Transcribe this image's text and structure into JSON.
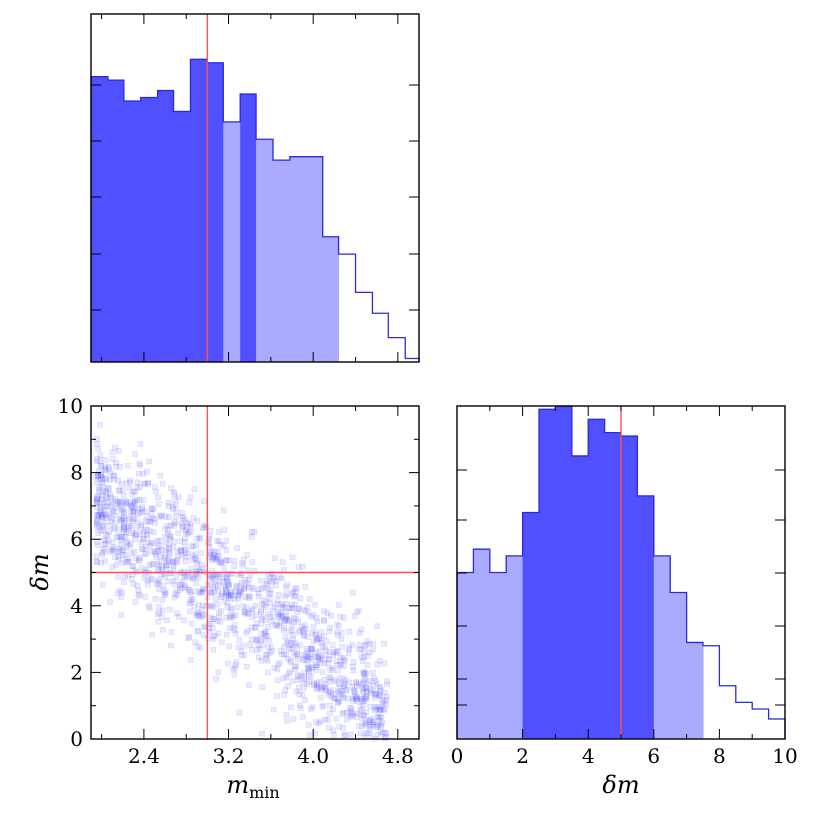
{
  "chart_data": [
    {
      "panel": "top-left",
      "type": "histogram",
      "xlim": [
        1.9,
        5.0
      ],
      "ylim": [
        0,
        1.0
      ],
      "bins": [
        [
          1.9,
          2.06,
          0.82
        ],
        [
          2.06,
          2.21,
          0.81
        ],
        [
          2.21,
          2.37,
          0.75
        ],
        [
          2.37,
          2.53,
          0.76
        ],
        [
          2.53,
          2.68,
          0.78
        ],
        [
          2.68,
          2.84,
          0.72
        ],
        [
          2.84,
          3.0,
          0.87
        ],
        [
          3.0,
          3.15,
          0.86
        ],
        [
          3.15,
          3.31,
          0.69
        ],
        [
          3.31,
          3.46,
          0.77
        ],
        [
          3.46,
          3.62,
          0.64
        ],
        [
          3.62,
          3.78,
          0.58
        ],
        [
          3.78,
          3.93,
          0.59
        ],
        [
          3.93,
          4.09,
          0.59
        ],
        [
          4.09,
          4.24,
          0.36
        ],
        [
          4.24,
          4.4,
          0.31
        ],
        [
          4.4,
          4.56,
          0.2
        ],
        [
          4.56,
          4.71,
          0.14
        ],
        [
          4.71,
          4.87,
          0.07
        ],
        [
          4.87,
          5.0,
          0.01
        ]
      ],
      "dark_bins": [
        0,
        1,
        2,
        3,
        4,
        5,
        6,
        7,
        9
      ],
      "light_bins": [
        8,
        10,
        11,
        12,
        13,
        14
      ],
      "truth": 3.0,
      "colors": {
        "dark": "#5050ff",
        "light": "#aaaaff",
        "edge": "#2b2bd6",
        "truth": "#ff5050"
      }
    },
    {
      "panel": "bottom-left",
      "type": "scatter",
      "xlabel": "m",
      "xlabel_sub": "min",
      "ylabel": "δm",
      "xlim": [
        1.9,
        5.0
      ],
      "ylim": [
        0,
        10
      ],
      "xticks": [
        2.4,
        3.2,
        4.0,
        4.8
      ],
      "xtick_labels": [
        "2.4",
        "3.2",
        "4.0",
        "4.8"
      ],
      "yticks": [
        0,
        2,
        4,
        6,
        8,
        10
      ],
      "ytick_labels": [
        "0",
        "2",
        "4",
        "6",
        "8",
        "10"
      ],
      "truth": {
        "x": 3.0,
        "y": 5.0
      },
      "colors": {
        "point": "#5050ff",
        "truth": "#ff5050"
      }
    },
    {
      "panel": "bottom-right",
      "type": "histogram",
      "xlabel": "δm",
      "xlim": [
        0,
        10
      ],
      "ylim": [
        0,
        1.0
      ],
      "xticks": [
        0,
        2,
        4,
        6,
        8,
        10
      ],
      "xtick_labels": [
        "0",
        "2",
        "4",
        "6",
        "8",
        "10"
      ],
      "bins": [
        [
          0,
          0.5,
          0.5
        ],
        [
          0.5,
          1.0,
          0.57
        ],
        [
          1.0,
          1.5,
          0.5
        ],
        [
          1.5,
          2.0,
          0.55
        ],
        [
          2.0,
          2.5,
          0.68
        ],
        [
          2.5,
          3.0,
          0.99
        ],
        [
          3.0,
          3.5,
          1.0
        ],
        [
          3.5,
          4.0,
          0.85
        ],
        [
          4.0,
          4.5,
          0.96
        ],
        [
          4.5,
          5.0,
          0.92
        ],
        [
          5.0,
          5.5,
          0.91
        ],
        [
          5.5,
          6.0,
          0.73
        ],
        [
          6.0,
          6.5,
          0.55
        ],
        [
          6.5,
          7.0,
          0.44
        ],
        [
          7.0,
          7.5,
          0.29
        ],
        [
          7.5,
          8.0,
          0.28
        ],
        [
          8.0,
          8.5,
          0.16
        ],
        [
          8.5,
          9.0,
          0.11
        ],
        [
          9.0,
          9.5,
          0.09
        ],
        [
          9.5,
          10.0,
          0.06
        ]
      ],
      "dark_bins": [
        4,
        5,
        6,
        7,
        8,
        9,
        10,
        11
      ],
      "light_bins": [
        0,
        1,
        2,
        3,
        12,
        13,
        14
      ],
      "truth": 5.0,
      "colors": {
        "dark": "#5050ff",
        "light": "#aaaaff",
        "edge": "#2b2bd6",
        "truth": "#ff5050"
      }
    }
  ]
}
